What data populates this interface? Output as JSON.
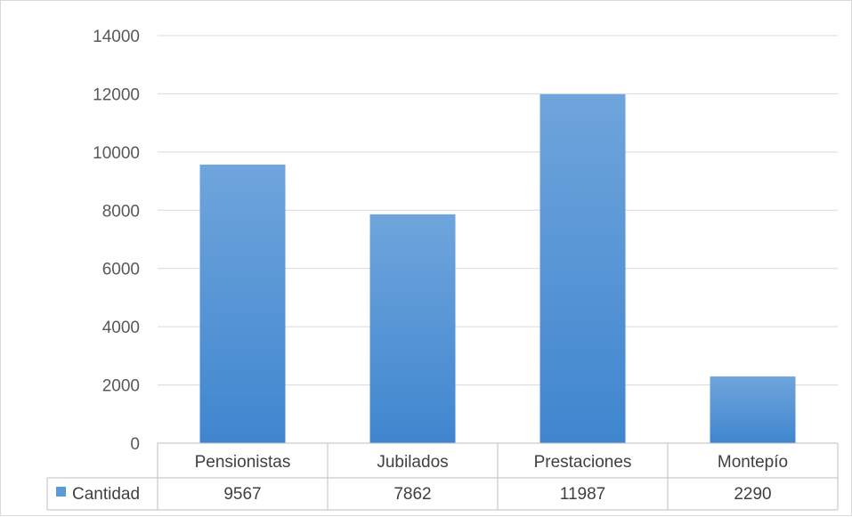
{
  "chart_data": {
    "type": "bar",
    "title": "",
    "xlabel": "",
    "ylabel": "",
    "categories": [
      "Pensionistas",
      "Jubilados",
      "Prestaciones",
      "Montepío"
    ],
    "series": [
      {
        "name": "Cantidad",
        "values": [
          9567,
          7862,
          11987,
          2290
        ],
        "color": "#5b9bd5"
      }
    ],
    "ylim": [
      0,
      14000
    ],
    "yticks": [
      0,
      2000,
      4000,
      6000,
      8000,
      10000,
      12000,
      14000
    ],
    "grid": true,
    "legend": "data-table",
    "data_table": true
  },
  "colors": {
    "bar_top": "#6fa5dc",
    "bar_bottom": "#3f86cf",
    "gridline": "#d9d9d9",
    "table_border": "#bfbfbf"
  }
}
